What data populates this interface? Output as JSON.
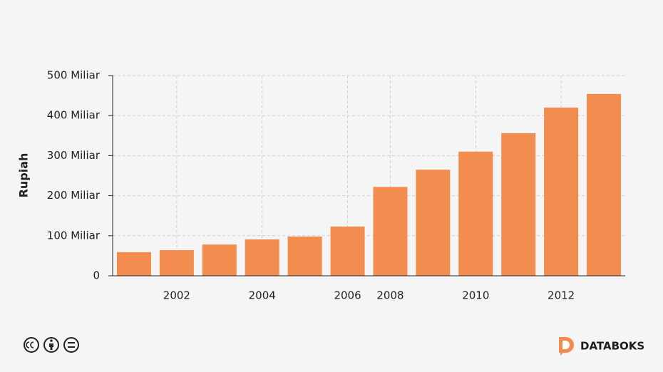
{
  "chart_data": {
    "type": "bar",
    "y_label": "Rupiah",
    "categories": [
      null,
      "2002",
      null,
      "2004",
      null,
      "2006",
      "2008",
      null,
      "2010",
      null,
      "2012",
      null
    ],
    "values": [
      59,
      64,
      78,
      91,
      98,
      123,
      222,
      265,
      310,
      356,
      420,
      454
    ],
    "color": "#f38c4f",
    "ylim": [
      0,
      500
    ],
    "yticks": [
      0,
      {
        "value": 100,
        "label": "100 Miliar"
      },
      {
        "value": 200,
        "label": "200 Miliar"
      },
      {
        "value": 300,
        "label": "300 Miliar"
      },
      {
        "value": 400,
        "label": "400 Miliar"
      },
      {
        "value": 500,
        "label": "500 Miliar"
      }
    ],
    "grid": true
  },
  "footer": {
    "brand": "DATABOKS"
  }
}
